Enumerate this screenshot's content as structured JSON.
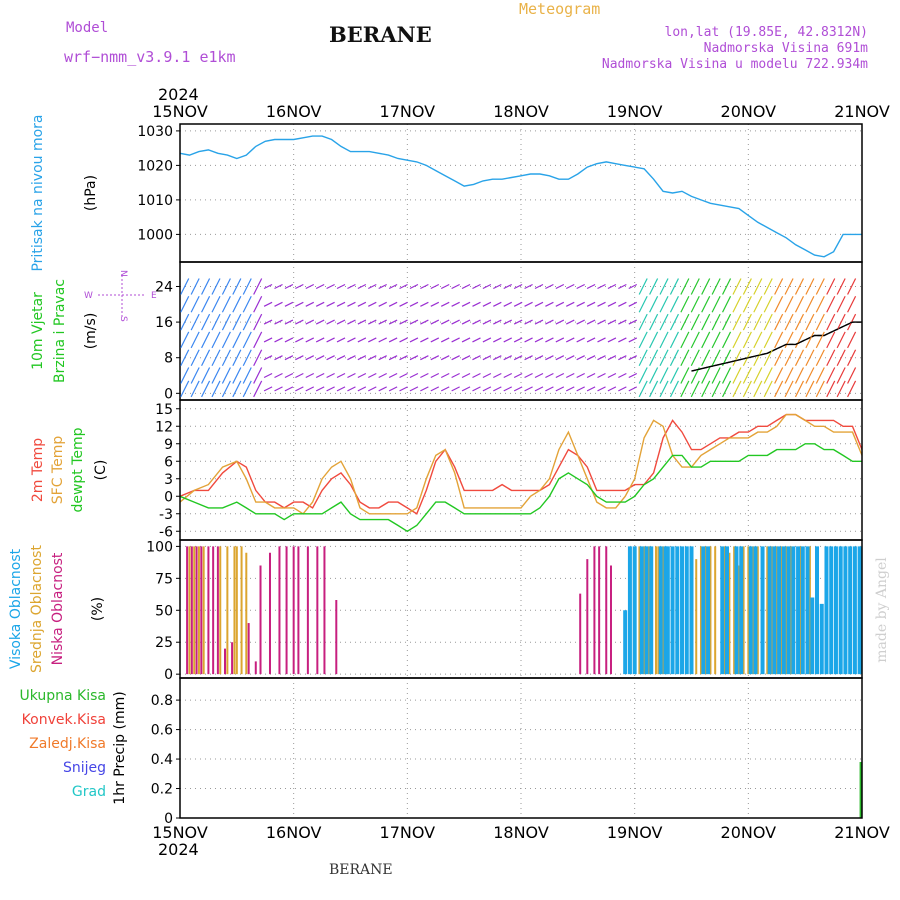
{
  "header": {
    "model_label": "Model",
    "model_value": "wrf−nmm_v3.9.1 e1km",
    "station": "BERANE",
    "chart_kind": "Meteogram",
    "coords": "lon,lat (19.85E, 42.8312N)",
    "elevation": "Nadmorska Visina 691m",
    "elevation_model": "Nadmorska Visina u modelu 722.934m",
    "year_top": "2024",
    "year_bottom": "2024",
    "footer_station": "BERANE",
    "credit": "made by Angel"
  },
  "colors": {
    "pressure": "#29a3e8",
    "temp2m": "#f04a3e",
    "sfc_temp": "#e3a338",
    "dewpt": "#22c722",
    "cloud_high": "#1ba6e8",
    "cloud_mid": "#dca52f",
    "cloud_low": "#c71f7f",
    "purple": "#b04ed6",
    "total_precip": "#2bb82b",
    "conv_precip": "#f0423a",
    "frozen_precip": "#f07a2a",
    "snow": "#4646e6",
    "hail": "#22c7c7"
  },
  "chart_data": {
    "type": "line",
    "x_ticks": [
      "15NOV",
      "16NOV",
      "17NOV",
      "18NOV",
      "19NOV",
      "20NOV",
      "21NOV"
    ],
    "x_range_hours": [
      0,
      144
    ],
    "panels": [
      {
        "id": "pressure",
        "ylabels": [
          "Pritisak na nivou mora",
          "(hPa)"
        ],
        "yticks": [
          1000,
          1010,
          1020,
          1030
        ],
        "ylim": [
          992,
          1032
        ],
        "series": [
          {
            "key": "slp",
            "color_key": "pressure",
            "x": [
              0,
              2,
              4,
              6,
              8,
              10,
              12,
              14,
              16,
              18,
              20,
              22,
              24,
              26,
              28,
              30,
              32,
              34,
              36,
              38,
              40,
              42,
              44,
              46,
              48,
              50,
              52,
              54,
              56,
              58,
              60,
              62,
              64,
              66,
              68,
              70,
              72,
              74,
              76,
              78,
              80,
              82,
              84,
              86,
              88,
              90,
              92,
              94,
              96,
              98,
              100,
              102,
              104,
              106,
              108,
              110,
              112,
              114,
              116,
              118,
              120,
              122,
              124,
              126,
              128,
              130,
              132,
              134,
              136,
              138,
              140,
              142,
              144
            ],
            "y": [
              1023.5,
              1023,
              1024,
              1024.5,
              1023.5,
              1023,
              1022,
              1023,
              1025.5,
              1027,
              1027.5,
              1027.5,
              1027.5,
              1028,
              1028.5,
              1028.5,
              1027.5,
              1025.5,
              1024,
              1024,
              1024,
              1023.5,
              1023,
              1022,
              1021.5,
              1021,
              1020,
              1018.5,
              1017,
              1015.5,
              1014,
              1014.5,
              1015.5,
              1016,
              1016,
              1016.5,
              1017,
              1017.5,
              1017.5,
              1017,
              1016,
              1016,
              1017.5,
              1019.5,
              1020.5,
              1021,
              1020.5,
              1020,
              1019.5,
              1019,
              1016,
              1012.5,
              1012,
              1012.5,
              1011,
              1010,
              1009,
              1008.5,
              1008,
              1007.5,
              1005.5,
              1003.5,
              1002,
              1000.5,
              999,
              997,
              995.5,
              994,
              993.5,
              995,
              1000,
              1000,
              1000
            ]
          }
        ]
      },
      {
        "id": "wind",
        "ylabels": [
          "10m Vjetar",
          "Brzina i Pravac",
          "(m/s)"
        ],
        "yticks": [
          0,
          8,
          16,
          24
        ],
        "ylim": [
          -1.5,
          29.5
        ],
        "compass": {
          "n": "N",
          "s": "S",
          "w": "W",
          "e": "E"
        },
        "series": [
          {
            "key": "wind_speed",
            "color": "#000000",
            "x": [
              108,
              112,
              116,
              120,
              124,
              126,
              128,
              130,
              132,
              134,
              136,
              138,
              140,
              142,
              144
            ],
            "y": [
              5,
              6,
              7,
              8,
              9,
              10,
              11,
              11,
              12,
              13,
              13,
              14,
              15,
              16,
              16
            ]
          }
        ]
      },
      {
        "id": "temperature",
        "ylabels": [
          "2m Temp",
          "SFC Temp",
          "dewpt Temp",
          "(C)"
        ],
        "yticks": [
          -6,
          -3,
          0,
          3,
          6,
          9,
          12,
          15
        ],
        "ylim": [
          -7.5,
          16.5
        ],
        "series": [
          {
            "key": "t2m",
            "color_key": "temp2m",
            "x": [
              0,
              3,
              6,
              9,
              12,
              14,
              16,
              18,
              20,
              22,
              24,
              26,
              28,
              30,
              32,
              34,
              36,
              38,
              40,
              42,
              44,
              46,
              48,
              50,
              52,
              54,
              56,
              58,
              60,
              62,
              64,
              66,
              68,
              70,
              72,
              74,
              76,
              78,
              80,
              82,
              84,
              86,
              88,
              90,
              92,
              94,
              96,
              98,
              100,
              102,
              104,
              106,
              108,
              110,
              112,
              114,
              116,
              118,
              120,
              122,
              124,
              126,
              128,
              130,
              132,
              134,
              136,
              138,
              140,
              142,
              144
            ],
            "y": [
              0,
              1,
              1,
              4,
              6,
              5,
              1,
              -1,
              -1,
              -2,
              -1,
              -1,
              -2,
              1,
              3,
              4,
              2,
              -1,
              -2,
              -2,
              -1,
              -1,
              -2,
              -3,
              1,
              6,
              8,
              5,
              1,
              1,
              1,
              1,
              2,
              1,
              1,
              1,
              1,
              2,
              5,
              8,
              7,
              5,
              1,
              1,
              1,
              1,
              2,
              2,
              4,
              10,
              13,
              11,
              8,
              8,
              9,
              10,
              10,
              11,
              11,
              12,
              12,
              13,
              14,
              14,
              13,
              13,
              13,
              13,
              12,
              12,
              8
            ]
          },
          {
            "key": "sfc",
            "color_key": "sfc_temp",
            "x": [
              0,
              3,
              6,
              9,
              12,
              14,
              16,
              18,
              20,
              22,
              24,
              26,
              28,
              30,
              32,
              34,
              36,
              38,
              40,
              42,
              44,
              46,
              48,
              50,
              52,
              54,
              56,
              58,
              60,
              62,
              64,
              66,
              68,
              70,
              72,
              74,
              76,
              78,
              80,
              82,
              84,
              86,
              88,
              90,
              92,
              94,
              96,
              98,
              100,
              102,
              104,
              106,
              108,
              110,
              112,
              114,
              116,
              118,
              120,
              122,
              124,
              126,
              128,
              130,
              132,
              134,
              136,
              138,
              140,
              142,
              144
            ],
            "y": [
              -1,
              1,
              2,
              5,
              6,
              3,
              -1,
              -1,
              -2,
              -2,
              -2,
              -3,
              -1,
              3,
              5,
              6,
              3,
              -2,
              -3,
              -3,
              -3,
              -3,
              -3,
              -2,
              3,
              7,
              8,
              4,
              -2,
              -2,
              -2,
              -2,
              -2,
              -2,
              -2,
              0,
              1,
              3,
              8,
              11,
              7,
              3,
              -1,
              -2,
              -2,
              0,
              3,
              10,
              13,
              12,
              7,
              5,
              5,
              7,
              8,
              9,
              10,
              10,
              10,
              11,
              11,
              12,
              14,
              14,
              13,
              12,
              12,
              11,
              11,
              11,
              7
            ]
          },
          {
            "key": "dewpt",
            "color_key": "dewpt",
            "x": [
              0,
              3,
              6,
              9,
              12,
              14,
              16,
              18,
              20,
              22,
              24,
              26,
              28,
              30,
              32,
              34,
              36,
              38,
              40,
              42,
              44,
              46,
              48,
              50,
              52,
              54,
              56,
              58,
              60,
              62,
              64,
              66,
              68,
              70,
              72,
              74,
              76,
              78,
              80,
              82,
              84,
              86,
              88,
              90,
              92,
              94,
              96,
              98,
              100,
              102,
              104,
              106,
              108,
              110,
              112,
              114,
              116,
              118,
              120,
              122,
              124,
              126,
              128,
              130,
              132,
              134,
              136,
              138,
              140,
              142,
              144
            ],
            "y": [
              0,
              -1,
              -2,
              -2,
              -1,
              -2,
              -3,
              -3,
              -3,
              -4,
              -3,
              -3,
              -3,
              -3,
              -2,
              -1,
              -3,
              -4,
              -4,
              -4,
              -4,
              -5,
              -6,
              -5,
              -3,
              -1,
              -1,
              -2,
              -3,
              -3,
              -3,
              -3,
              -3,
              -3,
              -3,
              -3,
              -2,
              0,
              3,
              4,
              3,
              2,
              0,
              -1,
              -1,
              -1,
              0,
              2,
              3,
              5,
              7,
              7,
              5,
              5,
              6,
              6,
              6,
              6,
              7,
              7,
              7,
              8,
              8,
              8,
              9,
              9,
              8,
              8,
              7,
              6,
              6
            ]
          }
        ]
      },
      {
        "id": "clouds",
        "ylabels": [
          "Visoka Oblacnost",
          "Srednja Oblacnost",
          "Niska Oblacnost",
          "(%)"
        ],
        "yticks": [
          0,
          25,
          50,
          75,
          100
        ],
        "ylim": [
          -3,
          105
        ],
        "bars": [
          {
            "key": "low",
            "color_key": "cloud_low",
            "x": [
              1.5,
              2.5,
              3.5,
              4.5,
              6,
              7,
              8,
              9.5,
              11,
              14.5,
              16,
              17,
              19,
              21,
              22.5,
              24,
              25,
              27,
              29,
              30.5,
              33,
              84.5,
              86,
              87.5,
              88.5,
              90,
              91
            ],
            "y": [
              100,
              100,
              100,
              100,
              100,
              100,
              100,
              20,
              25,
              40,
              10,
              85,
              95,
              100,
              100,
              100,
              100,
              100,
              100,
              100,
              58,
              63,
              90,
              100,
              100,
              100,
              85
            ]
          },
          {
            "key": "mid",
            "color_key": "cloud_mid",
            "x": [
              2,
              3,
              4,
              5,
              8.5,
              10,
              11.5,
              12,
              13,
              14,
              97,
              98,
              99,
              100.5,
              101,
              102,
              109,
              110,
              111,
              112,
              113,
              115,
              116,
              117,
              118,
              119,
              120,
              121,
              122,
              124,
              125,
              126,
              127,
              128,
              129,
              131,
              133
            ],
            "y": [
              100,
              100,
              100,
              100,
              100,
              100,
              100,
              100,
              100,
              95,
              100,
              100,
              100,
              100,
              100,
              100,
              90,
              100,
              100,
              100,
              100,
              100,
              95,
              100,
              85,
              100,
              100,
              100,
              100,
              100,
              100,
              100,
              100,
              100,
              100,
              100,
              100
            ]
          },
          {
            "key": "high",
            "color_key": "cloud_high",
            "x": [
              94,
              95,
              96,
              97.5,
              98.5,
              99.5,
              101.5,
              102.5,
              103,
              104,
              105,
              106,
              107,
              108,
              110.5,
              111.5,
              114.5,
              115.5,
              117.5,
              118.5,
              120.5,
              121.5,
              123,
              124.5,
              125.5,
              126.5,
              127.5,
              128.5,
              129.5,
              130.5,
              131.5,
              132.5,
              133.5,
              134.5,
              135.5,
              136.5,
              137.5,
              138.5,
              139.5,
              140.5,
              141.5,
              142.5,
              143.5
            ],
            "y": [
              50,
              100,
              100,
              100,
              100,
              100,
              100,
              100,
              100,
              100,
              100,
              100,
              100,
              100,
              100,
              100,
              100,
              100,
              100,
              100,
              100,
              100,
              100,
              100,
              100,
              100,
              100,
              100,
              100,
              100,
              100,
              100,
              60,
              100,
              55,
              100,
              100,
              100,
              100,
              100,
              100,
              100,
              100
            ]
          }
        ]
      },
      {
        "id": "precip",
        "ylabels": [
          "1hr Precip (mm)"
        ],
        "yticks": [
          0,
          0.2,
          0.4,
          0.6,
          0.8
        ],
        "ylim": [
          0,
          0.95
        ],
        "legend": [
          "Ukupna Kisa",
          "Konvek.Kisa",
          "Zaledj.Kisa",
          "Snijeg",
          "Grad"
        ],
        "bars": [
          {
            "key": "total",
            "color_key": "total_precip",
            "x": [
              143.7
            ],
            "y": [
              0.38
            ]
          }
        ]
      }
    ]
  }
}
